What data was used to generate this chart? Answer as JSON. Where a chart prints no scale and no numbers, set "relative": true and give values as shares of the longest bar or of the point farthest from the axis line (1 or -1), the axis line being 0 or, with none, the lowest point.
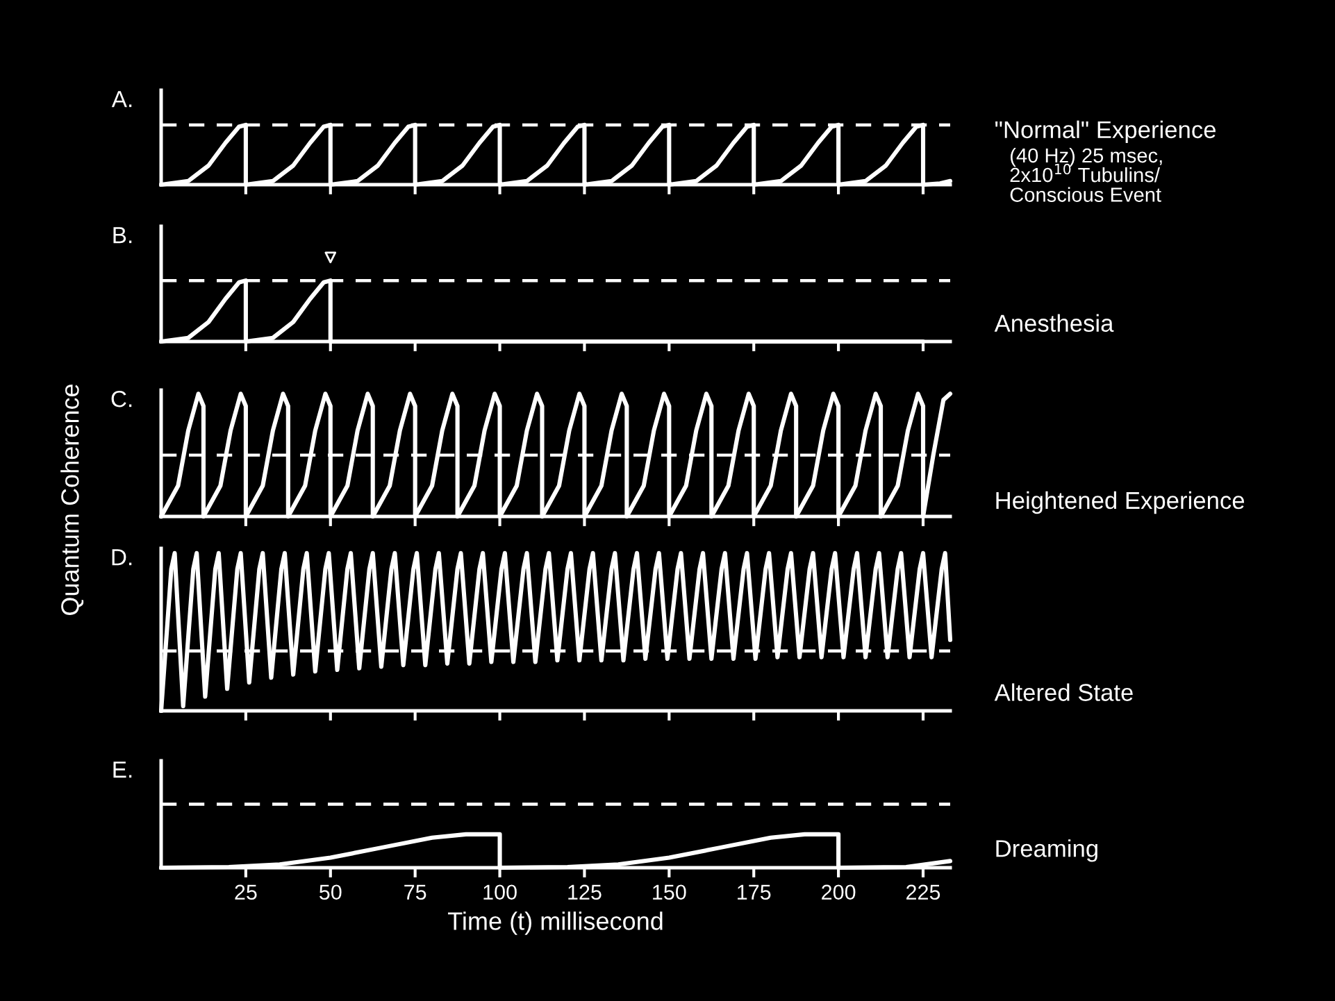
{
  "chart_data": [
    {
      "type": "line",
      "relative": true,
      "color": "#ffffff",
      "line_style": "solid",
      "xlim": [
        0,
        233
      ],
      "xticks": [
        25,
        50,
        75,
        100,
        125,
        150,
        175,
        200,
        225
      ],
      "tick_labels": false,
      "x": [
        0,
        8,
        14,
        19,
        23,
        25,
        25,
        33,
        39,
        44,
        48,
        50,
        50,
        58,
        64,
        69,
        73,
        75,
        75,
        83,
        89,
        94,
        98,
        100,
        100,
        108,
        114,
        119,
        123,
        125,
        125,
        133,
        139,
        144,
        148,
        150,
        150,
        158,
        164,
        169,
        173,
        175,
        175,
        183,
        189,
        194,
        198,
        200,
        200,
        208,
        214,
        219,
        223,
        225,
        225,
        230,
        233
      ],
      "values": [
        0,
        0.06,
        0.32,
        0.7,
        0.97,
        1,
        0,
        0.06,
        0.32,
        0.7,
        0.97,
        1,
        0,
        0.06,
        0.32,
        0.7,
        0.97,
        1,
        0,
        0.06,
        0.32,
        0.7,
        0.97,
        1,
        0,
        0.06,
        0.32,
        0.7,
        0.97,
        1,
        0,
        0.06,
        0.32,
        0.7,
        0.97,
        1,
        0,
        0.06,
        0.32,
        0.7,
        0.97,
        1,
        0,
        0.06,
        0.32,
        0.7,
        0.97,
        1,
        0,
        0.06,
        0.32,
        0.7,
        0.97,
        1,
        0,
        0.02,
        0.06
      ],
      "ref_lines": [
        {
          "axis": "y",
          "value": 1,
          "color": "#ffffff",
          "line_style": "dashed"
        }
      ],
      "annotations": [
        "A.",
        "\"Normal\" Experience",
        "(40 Hz) 25 msec,\n2x10$^{10}$ Tubulins/\nConscious Event"
      ]
    },
    {
      "type": "line",
      "relative": true,
      "color": "#ffffff",
      "line_style": "solid",
      "xlim": [
        0,
        233
      ],
      "xticks": [
        25,
        50,
        75,
        100,
        125,
        150,
        175,
        200,
        225
      ],
      "tick_labels": false,
      "x": [
        0,
        8,
        14,
        19,
        23,
        25,
        25,
        33,
        39,
        44,
        48,
        50,
        50,
        225
      ],
      "values": [
        0,
        0.06,
        0.32,
        0.7,
        0.97,
        1,
        0,
        0.06,
        0.32,
        0.7,
        0.97,
        1,
        0,
        0
      ],
      "ref_lines": [
        {
          "axis": "y",
          "value": 1,
          "color": "#ffffff",
          "line_style": "dashed"
        }
      ],
      "annotations": [
        "B.",
        "Anesthesia"
      ]
    },
    {
      "type": "line",
      "relative": true,
      "color": "#ffffff",
      "line_style": "solid",
      "xlim": [
        0,
        233
      ],
      "xticks": [
        25,
        50,
        75,
        100,
        125,
        150,
        175,
        200,
        225
      ],
      "tick_labels": false,
      "ylabel": "Quantum Coherence",
      "x": [
        0,
        5,
        8,
        11,
        12.5,
        12.5,
        17.5,
        20.5,
        23.5,
        25,
        25,
        30,
        33,
        36,
        37.5,
        37.5,
        42.5,
        45.5,
        48.5,
        50,
        50,
        55,
        58,
        61,
        62.5,
        62.5,
        67.5,
        70.5,
        73.5,
        75,
        75,
        80,
        83,
        86,
        87.5,
        87.5,
        92.5,
        95.5,
        98.5,
        100,
        100,
        105,
        108,
        111,
        112.5,
        112.5,
        117.5,
        120.5,
        123.5,
        125,
        125,
        130,
        133,
        136,
        137.5,
        137.5,
        142.5,
        145.5,
        148.5,
        150,
        150,
        155,
        158,
        161,
        162.5,
        162.5,
        167.5,
        170.5,
        173.5,
        175,
        175,
        180,
        183,
        186,
        187.5,
        187.5,
        192.5,
        195.5,
        198.5,
        200,
        200,
        205,
        208,
        211,
        212.5,
        212.5,
        217.5,
        220.5,
        223.5,
        225,
        225,
        228,
        231,
        233
      ],
      "values": [
        0,
        0.25,
        0.7,
        1,
        0.9,
        0,
        0.25,
        0.7,
        1,
        0.9,
        0,
        0.25,
        0.7,
        1,
        0.9,
        0,
        0.25,
        0.7,
        1,
        0.9,
        0,
        0.25,
        0.7,
        1,
        0.9,
        0,
        0.25,
        0.7,
        1,
        0.9,
        0,
        0.25,
        0.7,
        1,
        0.9,
        0,
        0.25,
        0.7,
        1,
        0.9,
        0,
        0.25,
        0.7,
        1,
        0.9,
        0,
        0.25,
        0.7,
        1,
        0.9,
        0,
        0.25,
        0.7,
        1,
        0.9,
        0,
        0.25,
        0.7,
        1,
        0.9,
        0,
        0.25,
        0.7,
        1,
        0.9,
        0,
        0.25,
        0.7,
        1,
        0.9,
        0,
        0.25,
        0.7,
        1,
        0.9,
        0,
        0.25,
        0.7,
        1,
        0.9,
        0,
        0.25,
        0.7,
        1,
        0.9,
        0,
        0.25,
        0.7,
        1,
        0.9,
        0,
        0.5,
        0.95,
        1
      ],
      "ref_lines": [
        {
          "axis": "y",
          "value": 0.5,
          "color": "#ffffff",
          "line_style": "dashed"
        }
      ],
      "annotations": [
        "C.",
        "Heightened Experience"
      ]
    },
    {
      "type": "line",
      "relative": true,
      "color": "#ffffff",
      "line_style": "solid",
      "xlim": [
        0,
        233
      ],
      "xticks": [
        25,
        50,
        75,
        100,
        125,
        150,
        175,
        200,
        225
      ],
      "tick_labels": false,
      "x": [
        0,
        3,
        4,
        6.5,
        9.5,
        10.5,
        13,
        16,
        17,
        19.5,
        22.5,
        23.5,
        26,
        29,
        30,
        32.5,
        35.5,
        36.5,
        39,
        42,
        43,
        45.5,
        48.5,
        49.5,
        52,
        55,
        56,
        58.5,
        61.5,
        62.5,
        65,
        68,
        69,
        71.5,
        74.5,
        75.5,
        78,
        81,
        82,
        84.5,
        87.5,
        88.5,
        91,
        94,
        95,
        97.5,
        100.5,
        101.5,
        104,
        107,
        108,
        110.5,
        113.5,
        114.5,
        117,
        120,
        121,
        123.5,
        126.5,
        127.5,
        130,
        133,
        134,
        136.5,
        139.5,
        140.5,
        143,
        146,
        147,
        149.5,
        152.5,
        153.5,
        156,
        159,
        160,
        162.5,
        165.5,
        166.5,
        169,
        172,
        173,
        175.5,
        178.5,
        179.5,
        182,
        185,
        186,
        188.5,
        191.5,
        192.5,
        195,
        198,
        199,
        201.5,
        204.5,
        205.5,
        208,
        211,
        212,
        214.5,
        217.5,
        218.5,
        221,
        224,
        225,
        227.5,
        230.5,
        231.5,
        233
      ],
      "values": [
        0,
        0.9,
        1,
        0.03,
        0.9,
        1,
        0.09,
        0.9,
        1,
        0.14,
        0.9,
        1,
        0.18,
        0.9,
        1,
        0.21,
        0.9,
        1,
        0.23,
        0.9,
        1,
        0.25,
        0.9,
        1,
        0.26,
        0.9,
        1,
        0.27,
        0.9,
        1,
        0.28,
        0.9,
        1,
        0.29,
        0.9,
        1,
        0.29,
        0.9,
        1,
        0.3,
        0.9,
        1,
        0.3,
        0.9,
        1,
        0.31,
        0.9,
        1,
        0.31,
        0.9,
        1,
        0.31,
        0.9,
        1,
        0.32,
        0.9,
        1,
        0.32,
        0.9,
        1,
        0.32,
        0.9,
        1,
        0.32,
        0.9,
        1,
        0.33,
        0.9,
        1,
        0.33,
        0.9,
        1,
        0.33,
        0.9,
        1,
        0.33,
        0.9,
        1,
        0.33,
        0.9,
        1,
        0.33,
        0.9,
        1,
        0.34,
        0.9,
        1,
        0.34,
        0.9,
        1,
        0.34,
        0.9,
        1,
        0.34,
        0.9,
        1,
        0.34,
        0.9,
        1,
        0.34,
        0.9,
        1,
        0.34,
        0.9,
        1,
        0.34,
        0.9,
        1,
        0.45
      ],
      "ref_lines": [
        {
          "axis": "y",
          "value": 0.38,
          "color": "#ffffff",
          "line_style": "dashed"
        }
      ],
      "annotations": [
        "D.",
        "Altered State"
      ]
    },
    {
      "type": "line",
      "relative": true,
      "color": "#ffffff",
      "line_style": "solid",
      "xlim": [
        0,
        233
      ],
      "xticks": [
        25,
        50,
        75,
        100,
        125,
        150,
        175,
        200,
        225
      ],
      "tick_labels": "x",
      "xlabel": "Time (t) millisecond",
      "x": [
        0,
        20,
        35,
        50,
        65,
        80,
        90,
        100,
        100,
        120,
        135,
        150,
        165,
        180,
        190,
        200,
        200,
        220,
        233
      ],
      "values": [
        0,
        0.02,
        0.1,
        0.3,
        0.6,
        0.9,
        1,
        1,
        0,
        0.02,
        0.1,
        0.3,
        0.6,
        0.9,
        1,
        1,
        0,
        0.02,
        0.2
      ],
      "ref_lines": [
        {
          "axis": "y",
          "value": 1.9,
          "color": "#ffffff",
          "line_style": "dashed"
        }
      ],
      "annotations": [
        "E.",
        "Dreaming"
      ]
    }
  ]
}
